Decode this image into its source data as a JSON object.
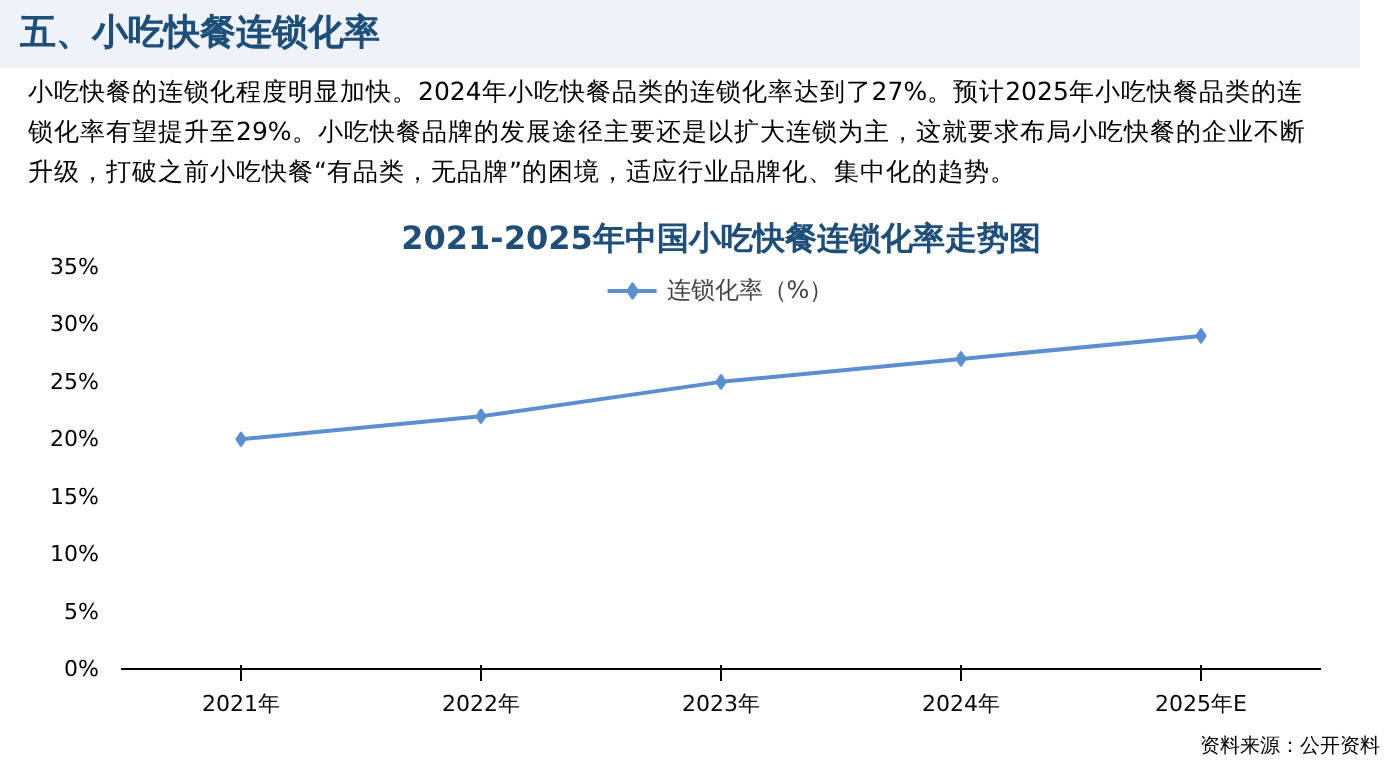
{
  "chart_data": {
    "type": "line",
    "title": "2021-2025年中国小吃快餐连锁化率走势图",
    "annotations": [
      "五、小吃快餐连锁化率",
      "小吃快餐的连锁化程度明显加快。2024年小吃快餐品类的连锁化率达到了27%。预计2025年小吃快餐品类的连锁化率有望提升至29%。小吃快餐品牌的发展途径主要还是以扩大连锁为主，这就要求布局小吃快餐的企业不断升级，打破之前小吃快餐“有品类，无品牌”的困境，适应行业品牌化、集中化的趋势。",
      "资料来源：公开资料"
    ],
    "categories": [
      "2021年",
      "2022年",
      "2023年",
      "2024年",
      "2025年E"
    ],
    "series": [
      {
        "name": "连锁化率（%）",
        "color": "#5b8fd0",
        "values": [
          20,
          22,
          25,
          27,
          29
        ]
      }
    ],
    "ylim": [
      0,
      35
    ],
    "yticks": [
      {
        "value": 0,
        "label": "0%"
      },
      {
        "value": 5,
        "label": "5%"
      },
      {
        "value": 10,
        "label": "10%"
      },
      {
        "value": 15,
        "label": "15%"
      },
      {
        "value": 20,
        "label": "20%"
      },
      {
        "value": 25,
        "label": "25%"
      },
      {
        "value": 30,
        "label": "30%"
      },
      {
        "value": 35,
        "label": "35%"
      }
    ],
    "grid": false,
    "legend": "top",
    "marker": "diamond",
    "line_style": "solid"
  }
}
